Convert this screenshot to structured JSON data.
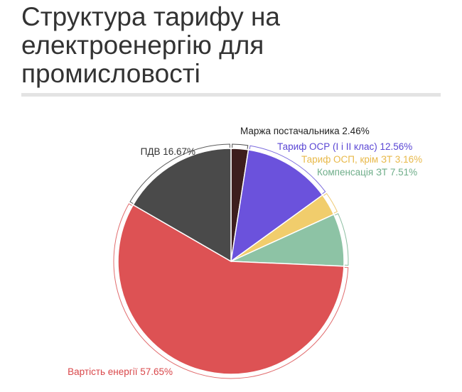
{
  "title": "Структура тарифу на електроенергію для промисловості",
  "chart_data": {
    "type": "pie",
    "title": "Структура тарифу на електроенергію для промисловості",
    "slices": [
      {
        "name": "Маржа постачальника",
        "value": 2.46,
        "label": "Маржа постачальника 2.46%",
        "color": "#3d1e1e"
      },
      {
        "name": "Тариф ОСР (І і ІІ клас)",
        "value": 12.56,
        "label": "Тариф ОСР (І і ІІ клас) 12.56%",
        "color": "#6b52dc"
      },
      {
        "name": "Тариф ОСП, крім ЗТ",
        "value": 3.16,
        "label": "Тариф ОСП, крім ЗТ 3.16%",
        "color": "#f1cd6c"
      },
      {
        "name": "Компенсація ЗТ",
        "value": 7.51,
        "label": "Компенсація ЗТ 7.51%",
        "color": "#8dc3a5"
      },
      {
        "name": "Вартість енергії",
        "value": 57.65,
        "label": "Вартість енергії 57.65%",
        "color": "#dd5254"
      },
      {
        "name": "ПДВ",
        "value": 16.67,
        "label": "ПДВ 16.67%",
        "color": "#4a4a4a"
      }
    ],
    "start_angle": "12 o'clock",
    "direction": "clockwise",
    "labels": "outside with leader brackets",
    "legend": "none"
  }
}
